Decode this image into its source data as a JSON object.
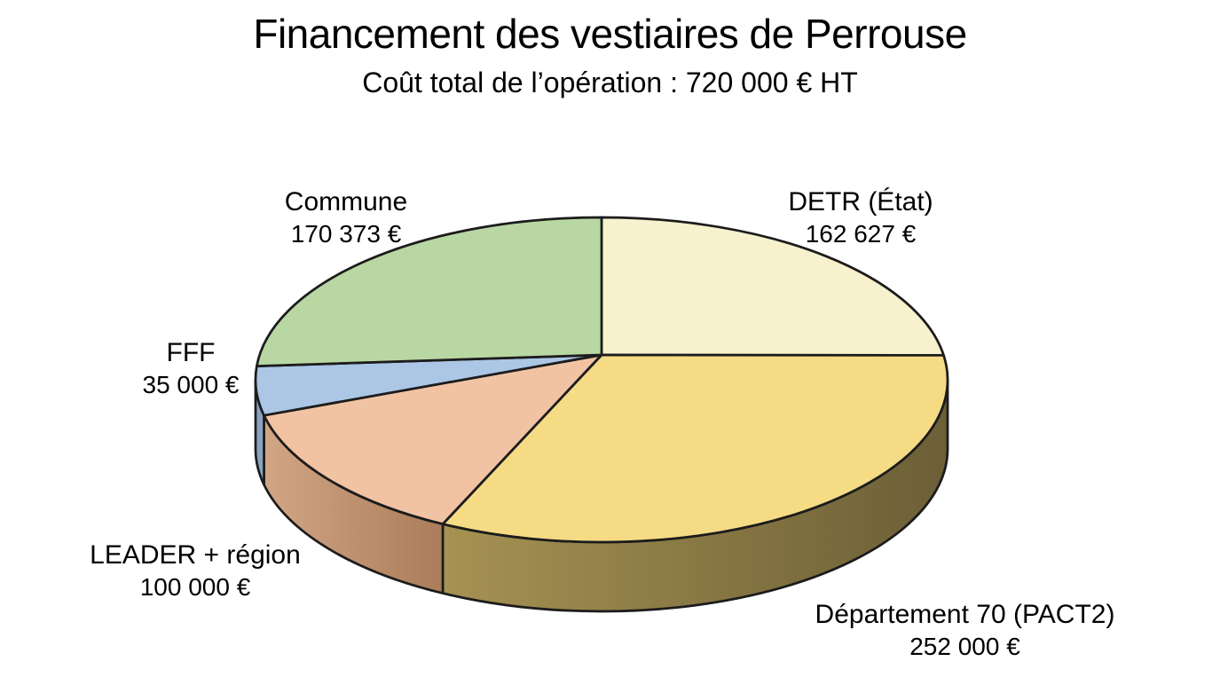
{
  "title": "Financement des vestiaires de Perrouse",
  "subtitle": "Coût total de l’opération : 720 000 € HT",
  "chart_data": {
    "type": "pie",
    "style": "3d",
    "title": "Financement des vestiaires de Perrouse",
    "subtitle": "Coût total de l’opération : 720 000 € HT",
    "total_value": 720000,
    "total_label": "720 000 € HT",
    "currency": "€",
    "start_angle_deg": -90,
    "direction": "clockwise",
    "legend_position": "none (direct callout labels)",
    "grid": false,
    "background_color": "#ffffff",
    "outline_color": "#1c1c1c",
    "slices": [
      {
        "id": "detr-etat",
        "label": "DETR (État)",
        "value": 162627,
        "value_label": "162 627 €",
        "color": "#f7f1ce",
        "side_colors": null
      },
      {
        "id": "departement-70-pact2",
        "label": "Département 70 (PACT2)",
        "value": 252000,
        "value_label": "252 000 €",
        "color": "#f6db85",
        "side_colors": [
          "#a69252",
          "#6c5f37"
        ]
      },
      {
        "id": "leader-region",
        "label": "LEADER + région",
        "value": 100000,
        "value_label": "100 000 €",
        "color": "#f1c3a3",
        "side_colors": [
          "#d2a685",
          "#aa7c5a"
        ]
      },
      {
        "id": "fff",
        "label": "FFF",
        "value": 35000,
        "value_label": "35 000 €",
        "color": "#abc7e5",
        "side_colors": [
          "#8ba3bf",
          "#8ba3bf"
        ]
      },
      {
        "id": "commune",
        "label": "Commune",
        "value": 170373,
        "value_label": "170 373 €",
        "color": "#b9d7a3",
        "side_colors": null
      }
    ]
  }
}
